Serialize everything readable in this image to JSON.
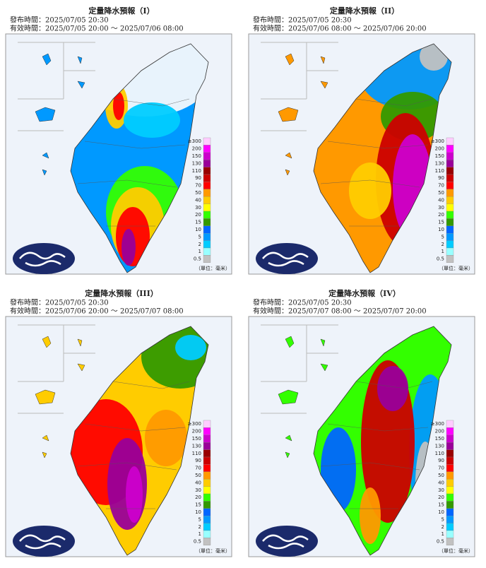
{
  "panels": [
    {
      "title": "定量降水預報（I）",
      "issued": "發布時間：2025/07/05 20:30",
      "valid": "有效時間：2025/07/05 20:00 ～ 2025/07/06 08:00"
    },
    {
      "title": "定量降水預報（II）",
      "issued": "發布時間：2025/07/05 20:30",
      "valid": "有效時間：2025/07/06 08:00 ～ 2025/07/06 20:00"
    },
    {
      "title": "定量降水預報（III）",
      "issued": "發布時間：2025/07/05 20:30",
      "valid": "有效時間：2025/07/06 20:00 ～ 2025/07/07 08:00"
    },
    {
      "title": "定量降水預報（IV）",
      "issued": "發布時間：2025/07/05 20:30",
      "valid": "有效時間：2025/07/07 08:00 ～ 2025/07/07 20:00"
    }
  ],
  "legend": {
    "unit": "（單位：毫米）",
    "labels": [
      "≥300",
      "200",
      "150",
      "130",
      "110",
      "90",
      "70",
      "50",
      "40",
      "30",
      "20",
      "15",
      "10",
      "5",
      "2",
      "1",
      "0.5"
    ],
    "colors": [
      "#ffccff",
      "#ff00ff",
      "#cc00cc",
      "#990099",
      "#990000",
      "#cc0000",
      "#ff0000",
      "#ff9900",
      "#ffcc00",
      "#ffff00",
      "#33ff00",
      "#339900",
      "#0066ff",
      "#0099ff",
      "#00ccff",
      "#99ffff",
      "#c1c1c1"
    ]
  }
}
